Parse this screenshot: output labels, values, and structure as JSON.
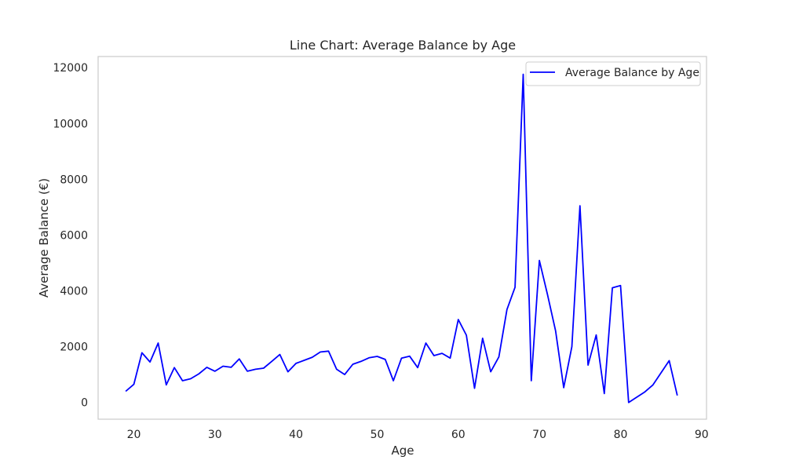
{
  "chart_data": {
    "type": "line",
    "title": "Line Chart: Average Balance by Age",
    "xlabel": "Age",
    "ylabel": "Average Balance (€)",
    "xlim": [
      15.6,
      90.6
    ],
    "ylim": [
      -600,
      12400
    ],
    "xticks": [
      20,
      30,
      40,
      50,
      60,
      70,
      80,
      90
    ],
    "yticks": [
      0,
      2000,
      4000,
      6000,
      8000,
      10000,
      12000
    ],
    "grid": false,
    "legend_position": "top-right",
    "series": [
      {
        "name": "Average Balance by Age",
        "color": "#0000ff",
        "x": [
          19,
          20,
          21,
          22,
          23,
          24,
          25,
          26,
          27,
          28,
          29,
          30,
          31,
          32,
          33,
          34,
          35,
          36,
          37,
          38,
          39,
          40,
          41,
          42,
          43,
          44,
          45,
          46,
          47,
          48,
          49,
          50,
          51,
          52,
          53,
          54,
          55,
          56,
          57,
          58,
          59,
          60,
          61,
          62,
          63,
          64,
          65,
          66,
          67,
          68,
          69,
          70,
          71,
          72,
          73,
          74,
          75,
          76,
          77,
          78,
          79,
          80,
          81,
          83,
          84,
          86,
          87
        ],
        "values": [
          400,
          650,
          1780,
          1450,
          2130,
          630,
          1250,
          780,
          850,
          1020,
          1260,
          1120,
          1300,
          1260,
          1560,
          1120,
          1190,
          1230,
          1470,
          1720,
          1100,
          1400,
          1510,
          1620,
          1810,
          1840,
          1190,
          1000,
          1370,
          1470,
          1600,
          1650,
          1540,
          780,
          1590,
          1660,
          1250,
          2130,
          1680,
          1760,
          1590,
          2970,
          2410,
          510,
          2300,
          1100,
          1630,
          3330,
          4130,
          11760,
          780,
          5090,
          3860,
          2560,
          530,
          2000,
          7050,
          1340,
          2420,
          320,
          4110,
          4190,
          0,
          380,
          630,
          1500,
          250
        ]
      }
    ]
  }
}
